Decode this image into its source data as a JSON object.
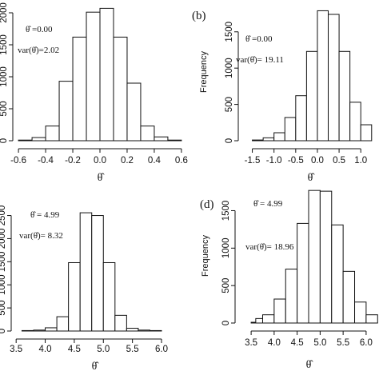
{
  "chart_data": [
    {
      "type": "bar",
      "panel_label": "",
      "xlabel": "θ̂",
      "ylabel": "",
      "x_ticks": [
        "-0.6",
        "-0.4",
        "-0.2",
        "0.0",
        "0.2",
        "0.4",
        "0.6"
      ],
      "xlim": [
        -0.63,
        0.63
      ],
      "y_ticks": [
        "0",
        "500",
        "1000",
        "1500",
        "2000"
      ],
      "ylim": [
        0,
        2100
      ],
      "bin_edges": [
        -0.6,
        -0.5,
        -0.4,
        -0.3,
        -0.2,
        -0.1,
        0.0,
        0.1,
        0.2,
        0.3,
        0.4,
        0.5,
        0.6
      ],
      "values": [
        10,
        50,
        230,
        930,
        1620,
        2010,
        2070,
        1620,
        900,
        230,
        60,
        10
      ],
      "annotations": [
        "θ̂ =0.00",
        "var(θ̂)=2.02"
      ]
    },
    {
      "type": "bar",
      "panel_label": "(b)",
      "xlabel": "θ̂",
      "ylabel": "Frequency",
      "x_ticks": [
        "-1.5",
        "-1.0",
        "-0.5",
        "0.0",
        "0.5",
        "1.0"
      ],
      "xlim": [
        -1.75,
        1.42
      ],
      "y_ticks": [
        "0",
        "500",
        "1000",
        "1500"
      ],
      "ylim": [
        0,
        1850
      ],
      "bin_edges": [
        -1.5,
        -1.25,
        -1.0,
        -0.75,
        -0.5,
        -0.25,
        0.0,
        0.25,
        0.5,
        0.75,
        1.0,
        1.25
      ],
      "values": [
        10,
        40,
        110,
        320,
        620,
        1230,
        1790,
        1740,
        1230,
        530,
        220,
        80
      ],
      "annotations": [
        "θ̂ =0.00",
        "var(θ̂)= 19.11"
      ]
    },
    {
      "type": "bar",
      "panel_label": "",
      "xlabel": "θ̂",
      "ylabel": "",
      "x_ticks": [
        "3.5",
        "4.0",
        "4.5",
        "5.0",
        "5.5",
        "6.0"
      ],
      "xlim": [
        3.47,
        6.22
      ],
      "y_ticks": [
        "0",
        "500",
        "1000",
        "1500",
        "2000",
        "2500"
      ],
      "ylim": [
        0,
        2700
      ],
      "bin_edges": [
        3.6,
        3.8,
        4.0,
        4.2,
        4.4,
        4.6,
        4.8,
        5.0,
        5.2,
        5.4,
        5.6,
        5.8,
        6.0
      ],
      "values": [
        10,
        20,
        70,
        310,
        1480,
        2560,
        2500,
        1480,
        340,
        60,
        20,
        10
      ],
      "annotations": [
        "θ̂ = 4.99",
        "var(θ̂)= 8.32"
      ]
    },
    {
      "type": "bar",
      "panel_label": "(d)",
      "xlabel": "θ̂",
      "ylabel": "Frequency",
      "x_ticks": [
        "3.5",
        "4.0",
        "4.5",
        "5.0",
        "5.5",
        "6.0"
      ],
      "xlim": [
        3.22,
        6.28
      ],
      "y_ticks": [
        "0",
        "500",
        "1000",
        "1500"
      ],
      "ylim": [
        0,
        1900
      ],
      "bin_edges": [
        3.5,
        3.6,
        3.75,
        4.0,
        4.25,
        4.5,
        4.75,
        5.0,
        5.25,
        5.5,
        5.75,
        6.0,
        6.25
      ],
      "values": [
        10,
        60,
        110,
        320,
        720,
        1330,
        1770,
        1760,
        1310,
        690,
        280,
        110
      ],
      "annotations": [
        "θ̂ = 4.99",
        "var(θ̂)= 18.96"
      ]
    }
  ]
}
